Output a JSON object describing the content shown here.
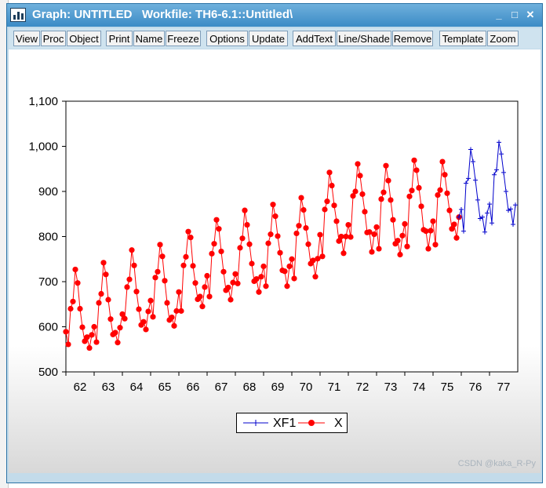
{
  "window": {
    "title": "Graph: UNTITLED   Workfile: TH6-6.1::Untitled\\",
    "minimize_glyph": "_",
    "maximize_glyph": "□",
    "close_glyph": "✕"
  },
  "toolbar": {
    "buttons": [
      "View",
      "Proc",
      "Object",
      "Print",
      "Name",
      "Freeze",
      "Options",
      "Update",
      "AddText",
      "Line/Shade",
      "Remove",
      "Template",
      "Zoom"
    ]
  },
  "watermark": "CSDN @kaka_R-Py",
  "colors": {
    "x_series": "#ff0000",
    "xf1_series": "#0000cc",
    "titlebar": "#3b8bc6"
  },
  "icons": {
    "app": "bar-chart-icon"
  },
  "chart_data": {
    "type": "line",
    "title": "",
    "xlabel": "",
    "ylabel": "",
    "ylim": [
      500,
      1100
    ],
    "yticks": [
      500,
      600,
      700,
      800,
      900,
      1000,
      1100
    ],
    "ytick_labels": [
      "500",
      "600",
      "700",
      "800",
      "900",
      "1,000",
      "1,100"
    ],
    "xlim": [
      1962.0,
      1978.0
    ],
    "xtick_labels": [
      "62",
      "63",
      "64",
      "65",
      "66",
      "67",
      "68",
      "69",
      "70",
      "71",
      "72",
      "73",
      "74",
      "75",
      "76",
      "77"
    ],
    "grid": false,
    "legend_position": "bottom-center",
    "legend": [
      "XF1",
      "X"
    ],
    "series": [
      {
        "name": "X",
        "start": 1962.0,
        "step": 0.08333333,
        "marker": "circle",
        "values": [
          589,
          561,
          640,
          656,
          727,
          697,
          640,
          599,
          568,
          577,
          553,
          582,
          600,
          566,
          653,
          673,
          742,
          716,
          660,
          617,
          583,
          587,
          565,
          598,
          628,
          618,
          688,
          705,
          770,
          736,
          678,
          639,
          604,
          611,
          594,
          634,
          658,
          622,
          709,
          722,
          782,
          756,
          702,
          653,
          615,
          621,
          602,
          635,
          677,
          635,
          736,
          755,
          811,
          798,
          735,
          697,
          661,
          667,
          645,
          688,
          713,
          667,
          762,
          784,
          837,
          817,
          767,
          722,
          681,
          687,
          660,
          698,
          717,
          696,
          775,
          796,
          858,
          826,
          783,
          740,
          701,
          706,
          677,
          711,
          734,
          690,
          785,
          805,
          871,
          845,
          801,
          764,
          725,
          723,
          690,
          734,
          750,
          707,
          807,
          824,
          886,
          859,
          819,
          783,
          740,
          747,
          711,
          751,
          804,
          756,
          860,
          878,
          942,
          913,
          869,
          834,
          790,
          800,
          763,
          800,
          826,
          799,
          890,
          900,
          961,
          935,
          894,
          855,
          809,
          810,
          766,
          805,
          821,
          773,
          883,
          898,
          957,
          924,
          881,
          837,
          784,
          791,
          760,
          802,
          828,
          778,
          889,
          902,
          969,
          947,
          908,
          867,
          815,
          812,
          773,
          813,
          834,
          782,
          892,
          903,
          966,
          937,
          896,
          858,
          817,
          827,
          797,
          843
        ]
      },
      {
        "name": "XF1",
        "start": 1975.917,
        "step": 0.08333333,
        "marker": "plus",
        "values": [
          843,
          860,
          812,
          918,
          929,
          993,
          966,
          925,
          881,
          840,
          843,
          810,
          852,
          872,
          830,
          937,
          948,
          1009,
          983,
          942,
          900,
          858,
          861,
          827,
          870
        ]
      }
    ]
  }
}
